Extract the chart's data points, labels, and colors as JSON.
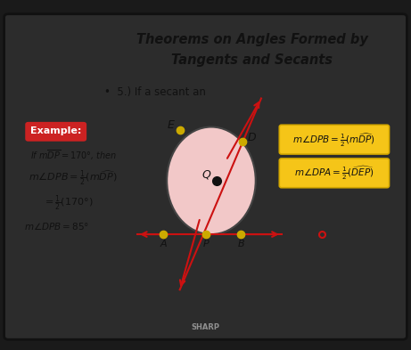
{
  "title_line1": "Theorems on Angles Formed by",
  "title_line2": "Tangents and Secants",
  "subtitle": "5.) If a secant an",
  "slide_bg": "#dde4ec",
  "outer_bg": "#1a1a1a",
  "frame_bg": "#2c2c2c",
  "example_bg": "#cc2222",
  "example_text_color": "#ffffff",
  "formula_bg": "#f5c518",
  "formula_border": "#d4a800",
  "circle_fill": "#f2c8c8",
  "circle_edge": "#444444",
  "dot_color": "#ccaa00",
  "center_dot": "#111111",
  "arrow_color": "#cc1111",
  "text_color": "#111111",
  "red_dot_color": "#cc1111",
  "sharp_color": "#aaaaaa"
}
